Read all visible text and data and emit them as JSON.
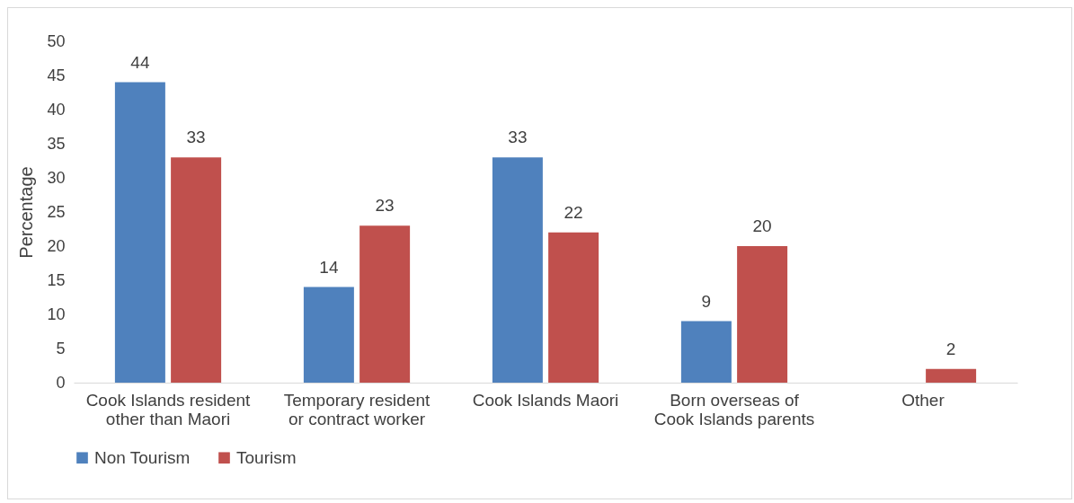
{
  "chart_data": {
    "type": "bar",
    "ylabel": "Percentage",
    "categories": [
      "Cook Islands resident other than Maori",
      "Temporary resident or contract worker",
      "Cook Islands Maori",
      "Born overseas of Cook Islands parents",
      "Other"
    ],
    "series": [
      {
        "name": "Non Tourism",
        "color": "#4f81bd",
        "values": [
          44,
          14,
          33,
          9,
          null
        ]
      },
      {
        "name": "Tourism",
        "color": "#c0504d",
        "values": [
          33,
          23,
          22,
          20,
          2
        ]
      }
    ],
    "ylim": [
      0,
      50
    ],
    "yticks": [
      0,
      5,
      10,
      15,
      20,
      25,
      30,
      35,
      40,
      45,
      50
    ],
    "grid": false,
    "legend": "bottom",
    "data_labels": true
  }
}
